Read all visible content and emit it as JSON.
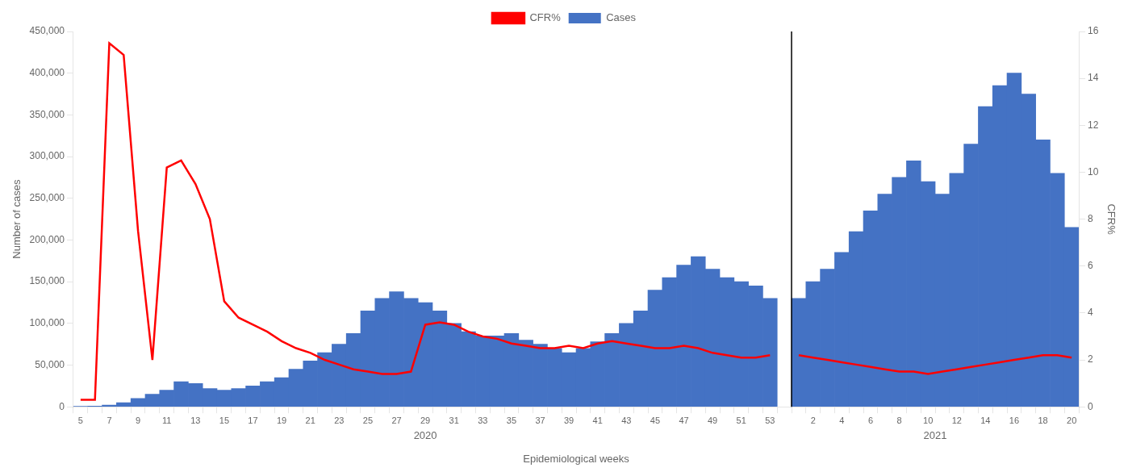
{
  "chart_data": {
    "type": "bar",
    "categories": [
      "5",
      null,
      "7",
      null,
      "9",
      null,
      "11",
      null,
      "13",
      null,
      "15",
      null,
      "17",
      null,
      "19",
      null,
      "21",
      null,
      "23",
      null,
      "25",
      null,
      "27",
      null,
      "29",
      null,
      "31",
      null,
      "33",
      null,
      "35",
      null,
      "37",
      null,
      "39",
      null,
      "41",
      null,
      "43",
      null,
      "45",
      null,
      "47",
      null,
      "49",
      null,
      "51",
      null,
      "53",
      null,
      null,
      "2",
      null,
      "4",
      null,
      "6",
      null,
      "8",
      null,
      "10",
      null,
      "12",
      null,
      "14",
      null,
      "16",
      null,
      "18",
      null,
      "20"
    ],
    "series": [
      {
        "name": "Cases",
        "color": "#4472C4",
        "values": [
          500,
          800,
          2000,
          5000,
          10000,
          15000,
          20000,
          30000,
          28000,
          22000,
          20000,
          22000,
          25000,
          30000,
          35000,
          45000,
          55000,
          65000,
          75000,
          88000,
          115000,
          130000,
          138000,
          130000,
          125000,
          115000,
          100000,
          90000,
          85000,
          85000,
          88000,
          80000,
          75000,
          70000,
          65000,
          70000,
          78000,
          88000,
          100000,
          115000,
          140000,
          155000,
          170000,
          180000,
          165000,
          155000,
          150000,
          145000,
          130000,
          null,
          130000,
          150000,
          165000,
          185000,
          210000,
          235000,
          255000,
          275000,
          295000,
          270000,
          255000,
          280000,
          315000,
          360000,
          385000,
          400000,
          375000,
          320000,
          280000,
          215000
        ]
      },
      {
        "name": "CFR%",
        "type": "line",
        "color": "#FF0000",
        "axis": "y2",
        "values": [
          0.3,
          0.3,
          15.5,
          15.0,
          7.5,
          2.0,
          10.2,
          10.5,
          9.5,
          8.0,
          4.5,
          3.8,
          3.5,
          3.2,
          2.8,
          2.5,
          2.3,
          2.0,
          1.8,
          1.6,
          1.5,
          1.4,
          1.4,
          1.5,
          3.5,
          3.6,
          3.5,
          3.2,
          3.0,
          2.9,
          2.7,
          2.6,
          2.5,
          2.5,
          2.6,
          2.5,
          2.7,
          2.8,
          2.7,
          2.6,
          2.5,
          2.5,
          2.6,
          2.5,
          2.3,
          2.2,
          2.1,
          2.1,
          2.2,
          null,
          2.2,
          2.1,
          2.0,
          1.9,
          1.8,
          1.7,
          1.6,
          1.5,
          1.5,
          1.4,
          1.5,
          1.6,
          1.7,
          1.8,
          1.9,
          2.0,
          2.1,
          2.2,
          2.2,
          2.1
        ]
      }
    ],
    "x_label": "Epidemiological weeks",
    "y_label": "Number of cases",
    "y2_label": "CFR%",
    "ylim": [
      0,
      450000
    ],
    "yticks": [
      0,
      {
        "value": 50000,
        "label": "50,000"
      },
      {
        "value": 100000,
        "label": "100,000"
      },
      {
        "value": 150000,
        "label": "150,000"
      },
      {
        "value": 200000,
        "label": "200,000"
      },
      {
        "value": 250000,
        "label": "250,000"
      },
      {
        "value": 300000,
        "label": "300,000"
      },
      {
        "value": 350000,
        "label": "350,000"
      },
      {
        "value": 400000,
        "label": "400,000"
      },
      {
        "value": 450000,
        "label": "450,000"
      }
    ],
    "y2lim": [
      0,
      16
    ],
    "y2ticks": [
      0,
      2,
      4,
      6,
      8,
      10,
      12,
      14,
      16
    ],
    "annotations": [
      "2020",
      "2021"
    ],
    "legend": "top",
    "grid": false
  }
}
